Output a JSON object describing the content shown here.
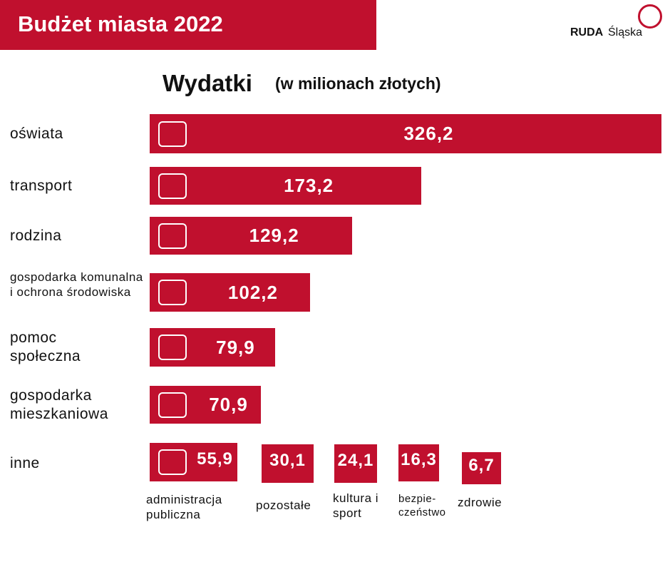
{
  "header": {
    "title": "Budżet miasta 2022",
    "logo_bold": "RUDA",
    "logo_light": "Śląska"
  },
  "chart_data": [
    {
      "type": "hbar",
      "title": "Wydatki",
      "subtitle": "(w milionach złotych)",
      "color": "#c0102e",
      "categories": [
        "oświata",
        "transport",
        "rodzina",
        "gospodarka komunalna i ochrona środowiska",
        "pomoc społeczna",
        "gospodarka mieszkaniowa"
      ],
      "values": [
        326.2,
        173.2,
        129.2,
        102.2,
        79.9,
        70.9
      ],
      "value_labels": [
        "326,2",
        "173,2",
        "129,2",
        "102,2",
        "79,9",
        "70,9"
      ]
    },
    {
      "type": "tiles",
      "title": "inne",
      "color": "#c0102e",
      "categories": [
        "administracja publiczna",
        "pozostałe",
        "kultura i sport",
        "bezpie-\nczeństwo",
        "zdrowie"
      ],
      "values": [
        55.9,
        30.1,
        24.1,
        16.3,
        6.7
      ],
      "value_labels": [
        "55,9",
        "30,1",
        "24,1",
        "16,3",
        "6,7"
      ]
    }
  ]
}
